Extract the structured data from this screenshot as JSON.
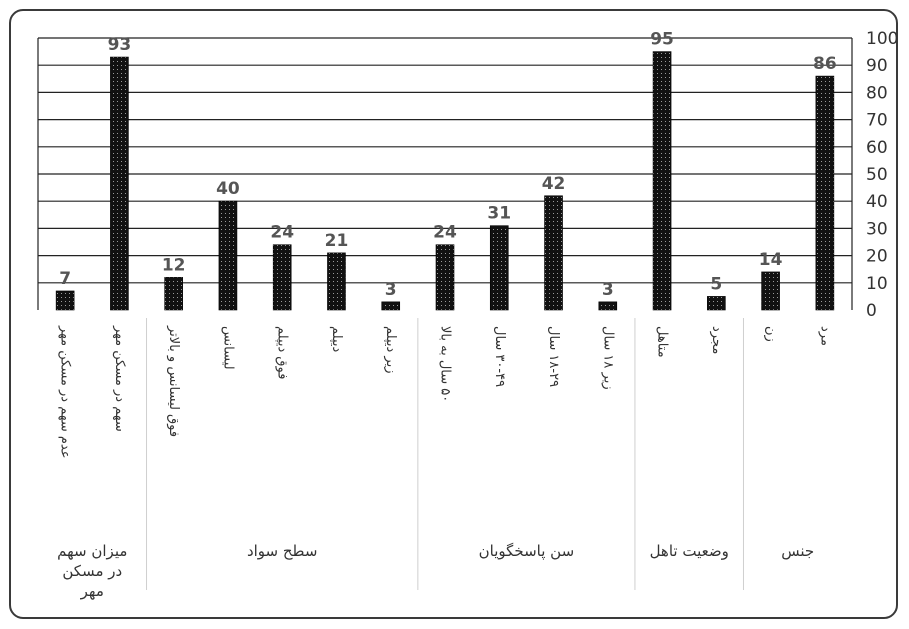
{
  "chart_data": {
    "type": "bar",
    "ylim": [
      0,
      100
    ],
    "yticks": [
      0,
      10,
      20,
      30,
      40,
      50,
      60,
      70,
      80,
      90,
      100
    ],
    "grid": true,
    "bar_color": "#111111",
    "categories": [
      "عدم سهم در مسکن مهر",
      "سهم در مسکن مهر",
      "فوق لیسانس و بالاتر",
      "لیسانس",
      "فوق دیپلم",
      "دیپلم",
      "زیر دیپلم",
      "۵۰ سال به بالا",
      "۳۰-۴۹ سال",
      "۱۸-۲۹ سال",
      "زیر ۱۸ سال",
      "متاهل",
      "مجرد",
      "زن",
      "مرد"
    ],
    "values": [
      7,
      93,
      12,
      40,
      24,
      21,
      3,
      24,
      31,
      42,
      3,
      95,
      5,
      14,
      86
    ],
    "groups": [
      {
        "label": "میزان سهم در مسکن مهر",
        "lines": [
          "میزان سهم",
          "در مسکن",
          "مهر"
        ],
        "start": 0,
        "end": 1
      },
      {
        "label": "سطح سواد",
        "start": 2,
        "end": 6
      },
      {
        "label": "سن پاسخگویان",
        "start": 7,
        "end": 10
      },
      {
        "label": "وضعیت تاهل",
        "start": 11,
        "end": 12
      },
      {
        "label": "جنس",
        "start": 13,
        "end": 14
      }
    ]
  }
}
